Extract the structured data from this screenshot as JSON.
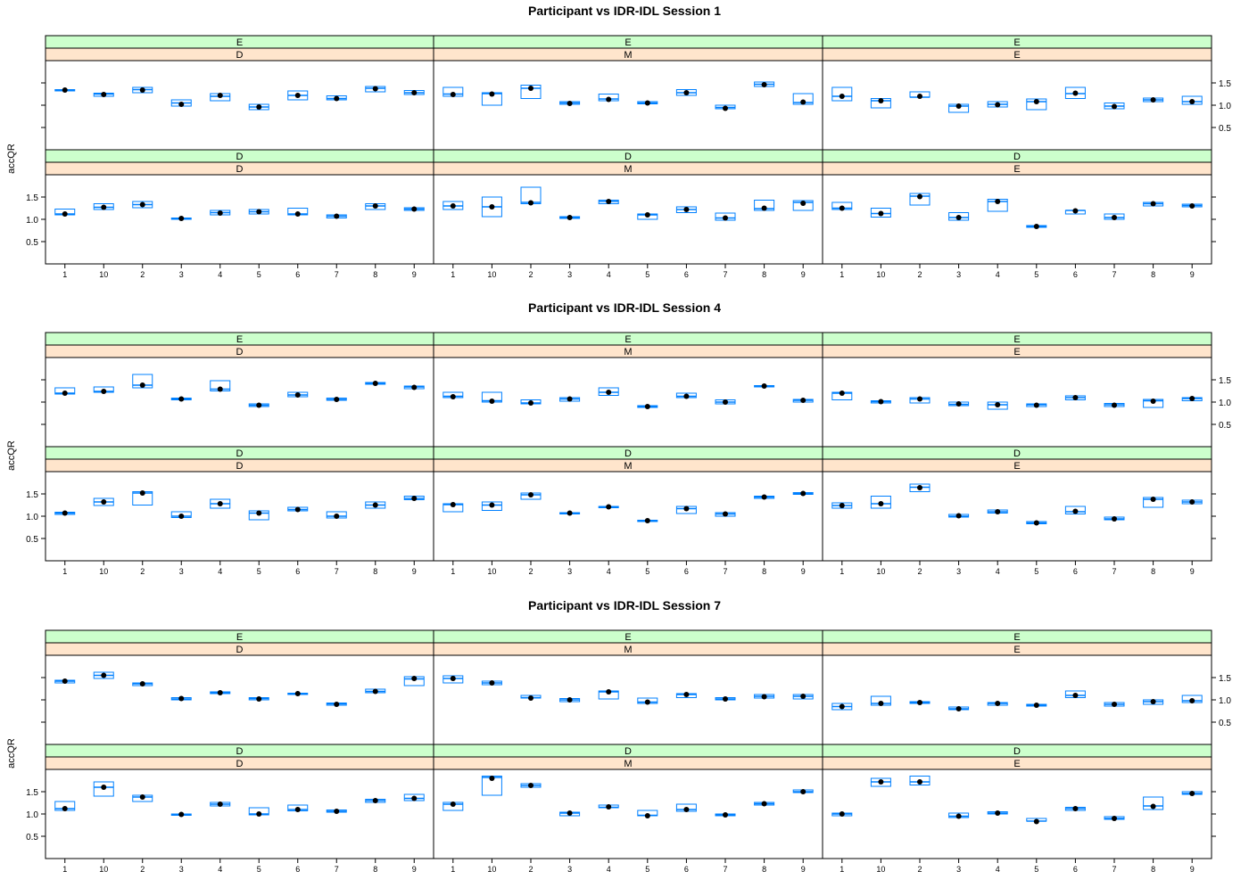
{
  "figure": {
    "titles": [
      "Participant vs IDR-IDL Session 1",
      "Participant vs IDR-IDL  Session 4",
      "Participant vs IDR-IDL  Session 7"
    ],
    "ylabel": "accQR",
    "categories": [
      "1",
      "10",
      "2",
      "3",
      "4",
      "5",
      "6",
      "7",
      "8",
      "9"
    ],
    "ytick_labels": [
      "0.5",
      "1.0",
      "1.5"
    ],
    "ylim": [
      0.0,
      2.0
    ],
    "strip_outer_colors": {
      "top": "#ccffcc",
      "bottom": "#ffe5cc"
    },
    "box_color": "#0080ff",
    "point_color": "#000000"
  },
  "chart_data": [
    {
      "type": "box",
      "title": "Participant vs IDR-IDL Session 1",
      "ylabel": "accQR",
      "categories": [
        "1",
        "10",
        "2",
        "3",
        "4",
        "5",
        "6",
        "7",
        "8",
        "9"
      ],
      "ylim": [
        0.0,
        2.0
      ],
      "yticks": [
        0.5,
        1.0,
        1.5
      ],
      "panels": [
        {
          "row": "top",
          "col": 0,
          "strip_top": "E",
          "strip_bottom": "D",
          "q1": [
            1.32,
            1.2,
            1.28,
            0.98,
            1.1,
            0.9,
            1.12,
            1.12,
            1.3,
            1.24
          ],
          "q3": [
            1.35,
            1.27,
            1.4,
            1.12,
            1.26,
            1.02,
            1.32,
            1.21,
            1.42,
            1.33
          ],
          "median": [
            1.34,
            1.25,
            1.35,
            1.05,
            1.2,
            0.96,
            1.22,
            1.15,
            1.38,
            1.28
          ],
          "mean": [
            1.34,
            1.24,
            1.34,
            1.02,
            1.22,
            0.96,
            1.22,
            1.15,
            1.37,
            1.28
          ]
        },
        {
          "row": "top",
          "col": 1,
          "strip_top": "E",
          "strip_bottom": "M",
          "q1": [
            1.2,
            1.0,
            1.15,
            1.02,
            1.1,
            1.03,
            1.22,
            0.92,
            1.42,
            1.02
          ],
          "q3": [
            1.4,
            1.28,
            1.45,
            1.08,
            1.25,
            1.08,
            1.35,
            1.0,
            1.52,
            1.26
          ],
          "median": [
            1.25,
            1.26,
            1.38,
            1.05,
            1.14,
            1.05,
            1.28,
            0.95,
            1.47,
            1.06
          ],
          "mean": [
            1.24,
            1.25,
            1.38,
            1.04,
            1.13,
            1.05,
            1.28,
            0.93,
            1.46,
            1.07
          ]
        },
        {
          "row": "top",
          "col": 2,
          "strip_top": "E",
          "strip_bottom": "E",
          "q1": [
            1.1,
            0.94,
            1.18,
            0.84,
            0.96,
            0.9,
            1.15,
            0.92,
            1.08,
            1.02
          ],
          "q3": [
            1.4,
            1.15,
            1.3,
            1.02,
            1.08,
            1.14,
            1.4,
            1.05,
            1.16,
            1.2
          ],
          "median": [
            1.2,
            1.1,
            1.18,
            0.98,
            1.02,
            1.08,
            1.26,
            0.98,
            1.12,
            1.08
          ],
          "mean": [
            1.2,
            1.1,
            1.2,
            0.98,
            1.01,
            1.08,
            1.27,
            0.97,
            1.12,
            1.08
          ]
        },
        {
          "row": "bottom",
          "col": 0,
          "strip_top": "D",
          "strip_bottom": "D",
          "q1": [
            1.1,
            1.22,
            1.26,
            1.0,
            1.1,
            1.12,
            1.1,
            1.03,
            1.22,
            1.2
          ],
          "q3": [
            1.23,
            1.35,
            1.4,
            1.03,
            1.2,
            1.22,
            1.25,
            1.1,
            1.35,
            1.26
          ],
          "median": [
            1.12,
            1.27,
            1.33,
            1.02,
            1.15,
            1.17,
            1.12,
            1.07,
            1.3,
            1.23
          ],
          "mean": [
            1.12,
            1.27,
            1.33,
            1.02,
            1.14,
            1.17,
            1.12,
            1.07,
            1.3,
            1.23
          ]
        },
        {
          "row": "bottom",
          "col": 1,
          "strip_top": "D",
          "strip_bottom": "M",
          "q1": [
            1.22,
            1.06,
            1.35,
            1.02,
            1.35,
            1.0,
            1.15,
            0.98,
            1.2,
            1.2
          ],
          "q3": [
            1.4,
            1.5,
            1.72,
            1.06,
            1.43,
            1.12,
            1.28,
            1.14,
            1.43,
            1.42
          ],
          "median": [
            1.3,
            1.28,
            1.38,
            1.04,
            1.4,
            1.1,
            1.22,
            1.03,
            1.24,
            1.38
          ],
          "mean": [
            1.3,
            1.28,
            1.37,
            1.04,
            1.4,
            1.1,
            1.22,
            1.03,
            1.25,
            1.36
          ]
        },
        {
          "row": "bottom",
          "col": 2,
          "strip_top": "D",
          "strip_bottom": "E",
          "q1": [
            1.22,
            1.05,
            1.32,
            0.98,
            1.18,
            0.82,
            1.12,
            1.0,
            1.3,
            1.28
          ],
          "q3": [
            1.38,
            1.25,
            1.58,
            1.15,
            1.45,
            0.86,
            1.2,
            1.12,
            1.38,
            1.34
          ],
          "median": [
            1.25,
            1.13,
            1.52,
            1.04,
            1.4,
            0.84,
            1.2,
            1.04,
            1.35,
            1.31
          ],
          "mean": [
            1.25,
            1.13,
            1.51,
            1.04,
            1.4,
            0.84,
            1.19,
            1.04,
            1.35,
            1.3
          ]
        }
      ]
    },
    {
      "type": "box",
      "title": "Participant vs IDR-IDL  Session 4",
      "ylabel": "accQR",
      "categories": [
        "1",
        "10",
        "2",
        "3",
        "4",
        "5",
        "6",
        "7",
        "8",
        "9"
      ],
      "ylim": [
        0.0,
        2.0
      ],
      "yticks": [
        0.5,
        1.0,
        1.5
      ],
      "panels": [
        {
          "row": "top",
          "col": 0,
          "strip_top": "E",
          "strip_bottom": "D",
          "q1": [
            1.18,
            1.22,
            1.32,
            1.05,
            1.25,
            0.9,
            1.12,
            1.04,
            1.4,
            1.3
          ],
          "q3": [
            1.32,
            1.34,
            1.62,
            1.09,
            1.48,
            0.96,
            1.22,
            1.09,
            1.44,
            1.36
          ],
          "median": [
            1.2,
            1.24,
            1.38,
            1.07,
            1.29,
            0.93,
            1.16,
            1.06,
            1.42,
            1.34
          ],
          "mean": [
            1.2,
            1.24,
            1.38,
            1.07,
            1.29,
            0.93,
            1.16,
            1.06,
            1.42,
            1.33
          ]
        },
        {
          "row": "top",
          "col": 1,
          "strip_top": "E",
          "strip_bottom": "M",
          "q1": [
            1.1,
            1.0,
            0.96,
            1.02,
            1.15,
            0.88,
            1.1,
            0.96,
            1.34,
            1.0
          ],
          "q3": [
            1.22,
            1.22,
            1.05,
            1.1,
            1.32,
            0.92,
            1.2,
            1.05,
            1.37,
            1.06
          ],
          "median": [
            1.13,
            1.03,
            0.98,
            1.07,
            1.22,
            0.9,
            1.13,
            1.0,
            1.36,
            1.04
          ],
          "mean": [
            1.12,
            1.02,
            0.98,
            1.07,
            1.22,
            0.9,
            1.13,
            1.0,
            1.36,
            1.04
          ]
        },
        {
          "row": "top",
          "col": 2,
          "strip_top": "E",
          "strip_bottom": "E",
          "q1": [
            1.05,
            0.98,
            0.98,
            0.92,
            0.84,
            0.9,
            1.05,
            0.9,
            0.88,
            1.03
          ],
          "q3": [
            1.22,
            1.03,
            1.1,
            1.0,
            1.0,
            0.96,
            1.14,
            0.97,
            1.06,
            1.1
          ],
          "median": [
            1.2,
            1.01,
            1.07,
            0.95,
            0.94,
            0.94,
            1.1,
            0.94,
            1.03,
            1.08
          ],
          "mean": [
            1.2,
            1.01,
            1.07,
            0.96,
            0.94,
            0.93,
            1.1,
            0.93,
            1.02,
            1.08
          ]
        },
        {
          "row": "bottom",
          "col": 0,
          "strip_top": "D",
          "strip_bottom": "D",
          "q1": [
            1.04,
            1.24,
            1.25,
            0.97,
            1.18,
            0.92,
            1.12,
            0.96,
            1.18,
            1.37
          ],
          "q3": [
            1.09,
            1.4,
            1.55,
            1.1,
            1.38,
            1.12,
            1.2,
            1.1,
            1.32,
            1.45
          ],
          "median": [
            1.07,
            1.32,
            1.52,
            1.0,
            1.28,
            1.07,
            1.15,
            1.0,
            1.25,
            1.4
          ],
          "mean": [
            1.07,
            1.32,
            1.52,
            1.0,
            1.28,
            1.07,
            1.15,
            1.0,
            1.25,
            1.4
          ]
        },
        {
          "row": "bottom",
          "col": 1,
          "strip_top": "D",
          "strip_bottom": "M",
          "q1": [
            1.1,
            1.13,
            1.38,
            1.05,
            1.2,
            0.88,
            1.06,
            1.0,
            1.4,
            1.49
          ],
          "q3": [
            1.28,
            1.32,
            1.52,
            1.08,
            1.22,
            0.91,
            1.22,
            1.08,
            1.45,
            1.53
          ],
          "median": [
            1.26,
            1.25,
            1.48,
            1.07,
            1.21,
            0.9,
            1.17,
            1.05,
            1.43,
            1.51
          ],
          "mean": [
            1.26,
            1.25,
            1.48,
            1.07,
            1.21,
            0.9,
            1.17,
            1.05,
            1.43,
            1.51
          ]
        },
        {
          "row": "bottom",
          "col": 2,
          "strip_top": "D",
          "strip_bottom": "E",
          "q1": [
            1.18,
            1.18,
            1.55,
            0.98,
            1.07,
            0.83,
            1.05,
            0.92,
            1.2,
            1.28
          ],
          "q3": [
            1.3,
            1.45,
            1.72,
            1.04,
            1.14,
            0.88,
            1.22,
            0.98,
            1.42,
            1.36
          ],
          "median": [
            1.24,
            1.28,
            1.65,
            1.0,
            1.1,
            0.85,
            1.1,
            0.94,
            1.38,
            1.32
          ],
          "mean": [
            1.24,
            1.28,
            1.64,
            1.01,
            1.1,
            0.85,
            1.11,
            0.94,
            1.38,
            1.32
          ]
        }
      ]
    },
    {
      "type": "box",
      "title": "Participant vs IDR-IDL  Session 7",
      "ylabel": "accQR",
      "categories": [
        "1",
        "10",
        "2",
        "3",
        "4",
        "5",
        "6",
        "7",
        "8",
        "9"
      ],
      "ylim": [
        0.0,
        2.0
      ],
      "yticks": [
        0.5,
        1.0,
        1.5
      ],
      "panels": [
        {
          "row": "top",
          "col": 0,
          "strip_top": "E",
          "strip_bottom": "D",
          "q1": [
            1.38,
            1.48,
            1.32,
            1.0,
            1.14,
            1.0,
            1.12,
            0.88,
            1.16,
            1.32
          ],
          "q3": [
            1.44,
            1.62,
            1.38,
            1.05,
            1.18,
            1.05,
            1.15,
            0.93,
            1.24,
            1.52
          ],
          "median": [
            1.42,
            1.55,
            1.36,
            1.02,
            1.16,
            1.03,
            1.14,
            0.91,
            1.19,
            1.47
          ],
          "mean": [
            1.42,
            1.55,
            1.36,
            1.03,
            1.16,
            1.02,
            1.14,
            0.9,
            1.19,
            1.48
          ]
        },
        {
          "row": "top",
          "col": 1,
          "strip_top": "E",
          "strip_bottom": "M",
          "q1": [
            1.38,
            1.34,
            1.04,
            0.96,
            1.02,
            0.92,
            1.05,
            1.0,
            1.04,
            1.02
          ],
          "q3": [
            1.54,
            1.42,
            1.1,
            1.03,
            1.2,
            1.04,
            1.14,
            1.05,
            1.12,
            1.12
          ],
          "median": [
            1.48,
            1.38,
            1.05,
            1.0,
            1.18,
            0.95,
            1.12,
            1.02,
            1.08,
            1.08
          ],
          "mean": [
            1.48,
            1.38,
            1.04,
            1.0,
            1.18,
            0.95,
            1.12,
            1.02,
            1.07,
            1.08
          ]
        },
        {
          "row": "top",
          "col": 2,
          "strip_top": "E",
          "strip_bottom": "E",
          "q1": [
            0.78,
            0.88,
            0.92,
            0.78,
            0.88,
            0.86,
            1.05,
            0.86,
            0.9,
            0.94
          ],
          "q3": [
            0.92,
            1.08,
            0.96,
            0.84,
            0.94,
            0.9,
            1.2,
            0.94,
            1.0,
            1.1
          ],
          "median": [
            0.85,
            0.92,
            0.94,
            0.8,
            0.92,
            0.88,
            1.1,
            0.9,
            0.96,
            0.98
          ],
          "mean": [
            0.85,
            0.92,
            0.94,
            0.8,
            0.92,
            0.88,
            1.1,
            0.9,
            0.96,
            0.98
          ]
        },
        {
          "row": "bottom",
          "col": 0,
          "strip_top": "D",
          "strip_bottom": "D",
          "q1": [
            1.08,
            1.4,
            1.28,
            0.97,
            1.18,
            0.98,
            1.07,
            1.04,
            1.26,
            1.3
          ],
          "q3": [
            1.28,
            1.72,
            1.42,
            1.0,
            1.26,
            1.14,
            1.2,
            1.09,
            1.33,
            1.44
          ],
          "median": [
            1.12,
            1.6,
            1.38,
            0.99,
            1.22,
            1.0,
            1.1,
            1.06,
            1.3,
            1.35
          ],
          "mean": [
            1.12,
            1.6,
            1.38,
            0.99,
            1.22,
            1.0,
            1.1,
            1.06,
            1.3,
            1.35
          ]
        },
        {
          "row": "bottom",
          "col": 1,
          "strip_top": "D",
          "strip_bottom": "M",
          "q1": [
            1.08,
            1.42,
            1.6,
            0.96,
            1.14,
            0.96,
            1.06,
            0.96,
            1.2,
            1.48
          ],
          "q3": [
            1.26,
            1.85,
            1.68,
            1.04,
            1.2,
            1.08,
            1.22,
            1.0,
            1.26,
            1.54
          ],
          "median": [
            1.22,
            1.82,
            1.64,
            1.02,
            1.15,
            0.97,
            1.1,
            0.98,
            1.23,
            1.5
          ],
          "mean": [
            1.22,
            1.8,
            1.64,
            1.02,
            1.16,
            0.96,
            1.1,
            0.98,
            1.23,
            1.5
          ]
        },
        {
          "row": "bottom",
          "col": 2,
          "strip_top": "D",
          "strip_bottom": "E",
          "q1": [
            0.96,
            1.62,
            1.65,
            0.92,
            1.0,
            0.84,
            1.08,
            0.88,
            1.1,
            1.44
          ],
          "q3": [
            1.02,
            1.8,
            1.85,
            1.02,
            1.05,
            0.9,
            1.15,
            0.94,
            1.38,
            1.5
          ],
          "median": [
            1.0,
            1.72,
            1.72,
            0.95,
            1.02,
            0.84,
            1.12,
            0.9,
            1.18,
            1.46
          ],
          "mean": [
            1.0,
            1.72,
            1.72,
            0.95,
            1.02,
            0.83,
            1.12,
            0.9,
            1.17,
            1.46
          ]
        }
      ]
    }
  ]
}
